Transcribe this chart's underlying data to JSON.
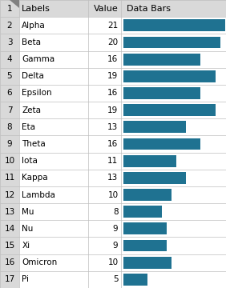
{
  "rows": [
    {
      "row": 1,
      "label": "Labels",
      "value": null
    },
    {
      "row": 2,
      "label": "Alpha",
      "value": 21
    },
    {
      "row": 3,
      "label": "Beta",
      "value": 20
    },
    {
      "row": 4,
      "label": "Gamma",
      "value": 16
    },
    {
      "row": 5,
      "label": "Delta",
      "value": 19
    },
    {
      "row": 6,
      "label": "Epsilon",
      "value": 16
    },
    {
      "row": 7,
      "label": "Zeta",
      "value": 19
    },
    {
      "row": 8,
      "label": "Eta",
      "value": 13
    },
    {
      "row": 9,
      "label": "Theta",
      "value": 16
    },
    {
      "row": 10,
      "label": "Iota",
      "value": 11
    },
    {
      "row": 11,
      "label": "Kappa",
      "value": 13
    },
    {
      "row": 12,
      "label": "Lambda",
      "value": 10
    },
    {
      "row": 13,
      "label": "Mu",
      "value": 8
    },
    {
      "row": 14,
      "label": "Nu",
      "value": 9
    },
    {
      "row": 15,
      "label": "Xi",
      "value": 9
    },
    {
      "row": 16,
      "label": "Omicron",
      "value": 10
    },
    {
      "row": 17,
      "label": "Pi",
      "value": 5
    }
  ],
  "max_value": 21,
  "bar_color": "#1F7291",
  "header_bg": "#D9D9D9",
  "grid_color": "#BFBFBF",
  "font_size": 7.5,
  "header_font_size": 8.0,
  "col_bounds": [
    0.0,
    0.085,
    0.39,
    0.535,
    1.0
  ]
}
